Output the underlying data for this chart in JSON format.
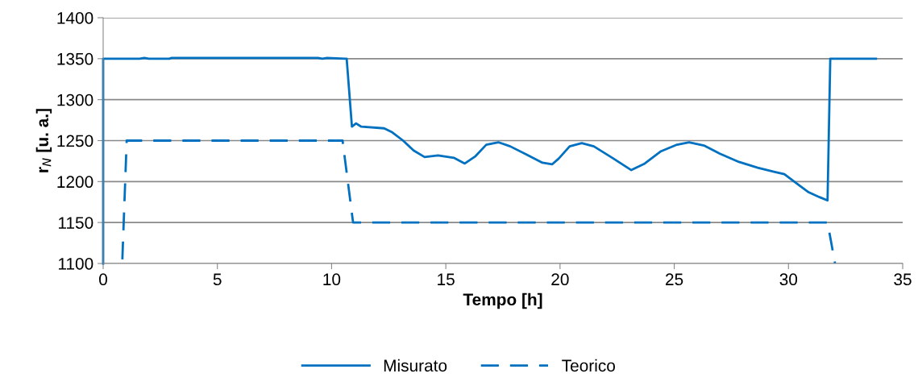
{
  "chart_data": {
    "type": "line",
    "xlabel": "Tempo [h]",
    "ylabel": "r$_{N}$ [u. a.]",
    "xlim": [
      0,
      35
    ],
    "xticks": [
      0,
      5,
      10,
      15,
      20,
      25,
      30,
      35
    ],
    "ylim": [
      1100,
      1400
    ],
    "yticks": [
      1100,
      1150,
      1200,
      1250,
      1300,
      1350,
      1400
    ],
    "grid": "y",
    "legend": "bottom",
    "marker": "none",
    "series": [
      {
        "name": "Misurato",
        "color": "#0070c0",
        "line_style": "solid",
        "x": [
          0,
          0,
          1.6,
          1.8,
          2.0,
          2.9,
          3.0,
          9.4,
          9.6,
          9.8,
          10.6,
          10.66,
          10.89,
          11.07,
          11.3,
          12.3,
          12.66,
          13.13,
          13.59,
          14.07,
          14.66,
          15.35,
          15.83,
          16.3,
          16.77,
          17.3,
          17.82,
          18.53,
          19.23,
          19.65,
          19.94,
          20.42,
          20.95,
          21.48,
          22.23,
          23.12,
          23.71,
          24.42,
          25.12,
          25.65,
          26.3,
          27.0,
          27.83,
          28.65,
          29.36,
          29.82,
          30.3,
          30.88,
          31.36,
          31.71,
          31.83,
          33.83
        ],
        "values": [
          1100,
          1350,
          1350,
          1351,
          1350,
          1350,
          1351,
          1351,
          1350,
          1351,
          1350,
          1350,
          1267,
          1271,
          1267,
          1265,
          1260,
          1250,
          1238,
          1230,
          1232,
          1229,
          1222,
          1231,
          1245,
          1248,
          1243,
          1233,
          1223,
          1221,
          1228,
          1243,
          1247,
          1243,
          1230,
          1214,
          1222,
          1237,
          1245,
          1248,
          1244,
          1234,
          1224,
          1217,
          1212,
          1209,
          1199,
          1187,
          1181,
          1177,
          1350,
          1350
        ]
      },
      {
        "name": "Teorico",
        "color": "#0070c0",
        "line_style": "dashed",
        "x": [
          0.84,
          1.03,
          10.48,
          10.94,
          31.71,
          32.04
        ],
        "values": [
          1105,
          1250,
          1250,
          1150,
          1150,
          1100
        ]
      }
    ]
  }
}
